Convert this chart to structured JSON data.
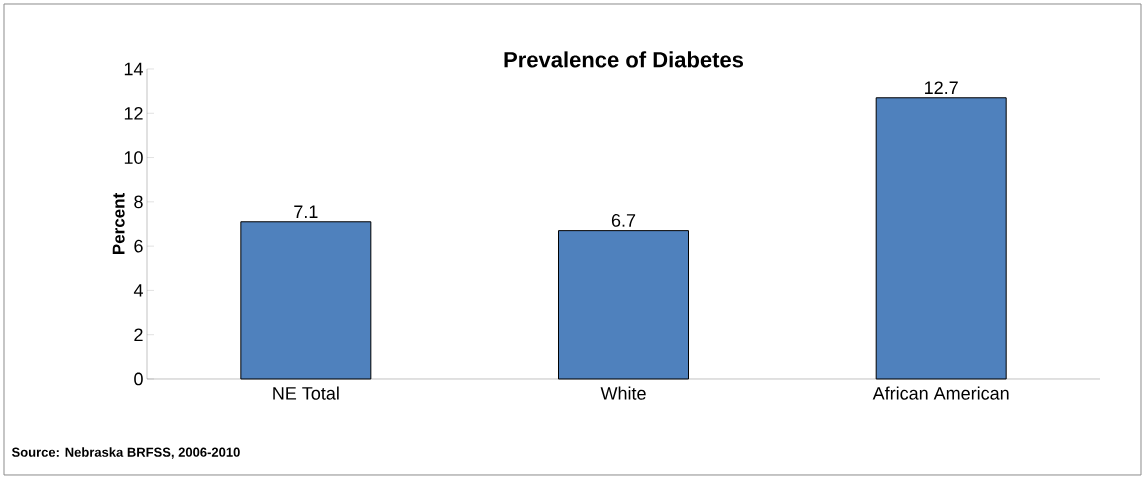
{
  "chart_data": {
    "type": "bar",
    "title": "Prevalence of Diabetes",
    "ylabel": "Percent",
    "categories": [
      "NE Total",
      "White",
      "African American"
    ],
    "values": [
      7.1,
      6.7,
      12.7
    ],
    "color": "#4f81bd",
    "ylim": [
      0,
      14
    ],
    "yticks": [
      0,
      2,
      4,
      6,
      8,
      10,
      12,
      14
    ],
    "data_labels": true,
    "annotations": [
      "Source: Nebraska BRFSS, 2006-2010"
    ]
  }
}
